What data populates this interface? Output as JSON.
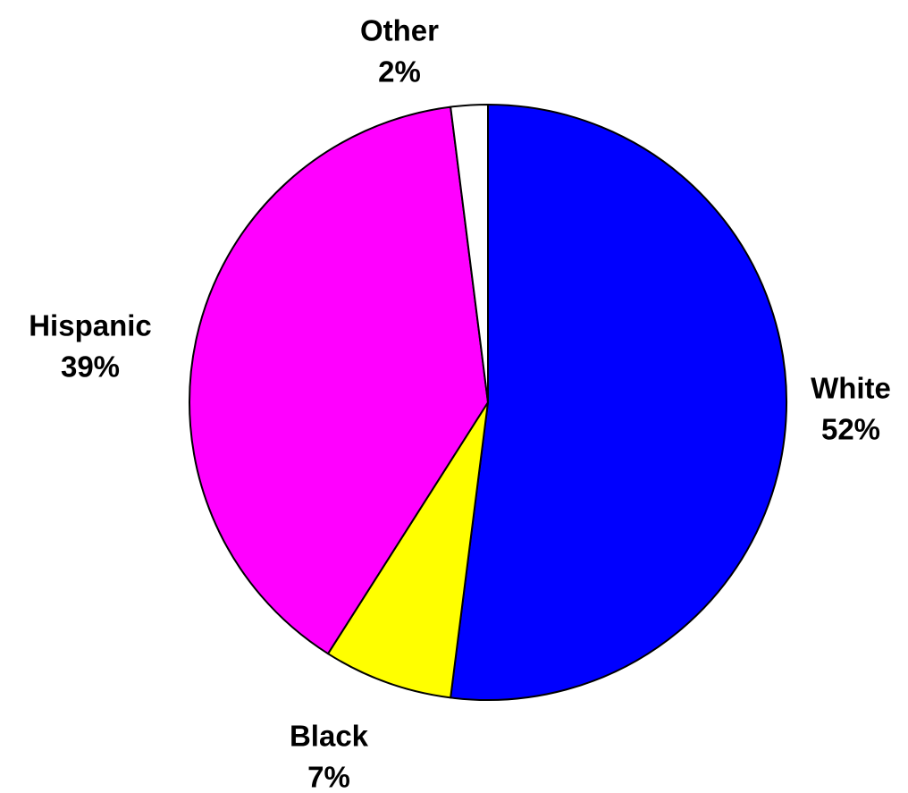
{
  "chart_data": {
    "type": "pie",
    "slices": [
      {
        "name": "White",
        "value": 52,
        "label": "52%",
        "color": "#0000FF"
      },
      {
        "name": "Black",
        "value": 7,
        "label": "7%",
        "color": "#FFFF00"
      },
      {
        "name": "Hispanic",
        "value": 39,
        "label": "39%",
        "color": "#FF00FF"
      },
      {
        "name": "Other",
        "value": 2,
        "label": "2%",
        "color": "#FFFFFF"
      }
    ],
    "start": "12 o'clock",
    "direction": "clockwise",
    "outline_color": "#000000",
    "legend": "none",
    "title": ""
  }
}
